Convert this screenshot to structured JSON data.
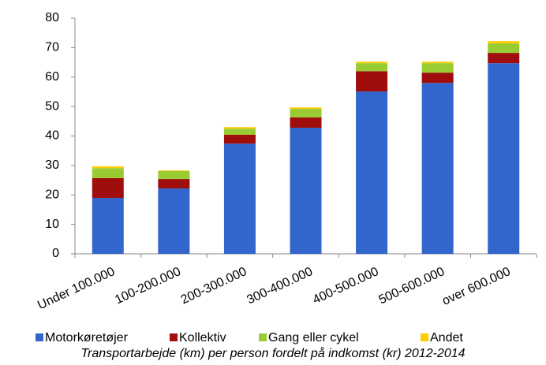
{
  "chart_data": {
    "type": "stacked_bar",
    "title": "Transportarbejde (km) per person fordelt på indkomst  (kr) 2012-2014",
    "categories": [
      "Under 100.000",
      "100-200.000",
      "200-300.000",
      "300-400.000",
      "400-500.000",
      "500-600.000",
      "over 600.000"
    ],
    "series": [
      {
        "name": "Motorkøretøjer",
        "color": "#3366cc",
        "values": [
          19.0,
          22.2,
          37.4,
          42.8,
          55.1,
          58.0,
          64.7
        ]
      },
      {
        "name": "Kollektiv",
        "color": "#a00d0d",
        "values": [
          6.7,
          3.2,
          3.0,
          3.5,
          6.9,
          3.5,
          3.5
        ]
      },
      {
        "name": "Gang eller cykel",
        "color": "#99cc33",
        "values": [
          3.4,
          2.7,
          2.1,
          2.9,
          2.7,
          3.2,
          3.2
        ]
      },
      {
        "name": "Andet",
        "color": "#ffcc00",
        "values": [
          0.6,
          0.2,
          0.5,
          0.5,
          0.5,
          0.5,
          0.8
        ]
      }
    ],
    "ylim": [
      0,
      80
    ],
    "yticks": [
      0,
      10,
      20,
      30,
      40,
      50,
      60,
      70,
      80
    ],
    "legend": "bottom"
  }
}
